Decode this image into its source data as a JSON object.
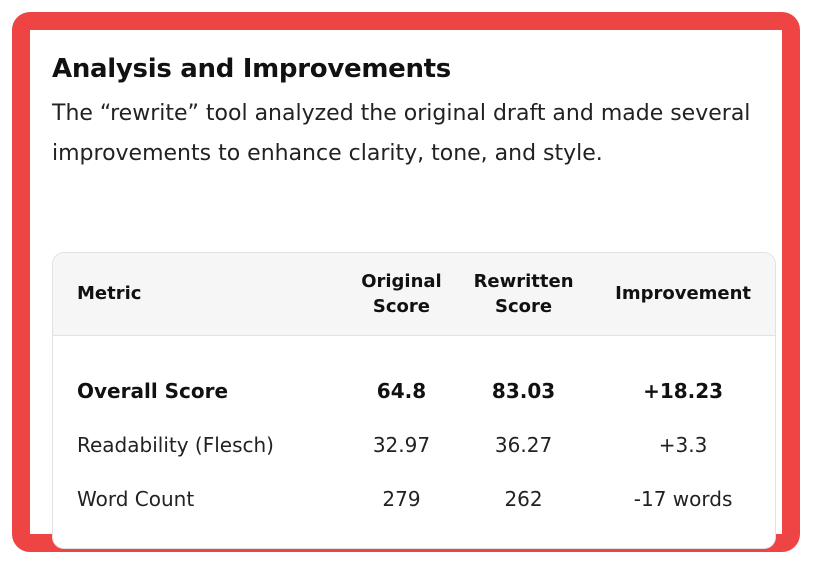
{
  "section": {
    "title": "Analysis and Improvements",
    "description_prefix": "The ",
    "tool_name": "“rewrite”",
    "description_suffix": " tool analyzed the original draft and made several improvements to enhance clarity, tone, and style."
  },
  "table": {
    "headers": {
      "metric": "Metric",
      "original_line1": "Original",
      "original_line2": "Score",
      "rewritten_line1": "Rewritten",
      "rewritten_line2": "Score",
      "improvement": "Improvement"
    },
    "rows": [
      {
        "metric": "Overall Score",
        "original": "64.8",
        "rewritten": "83.03",
        "improvement": "+18.23"
      },
      {
        "metric": "Readability (Flesch)",
        "original": "32.97",
        "rewritten": "36.27",
        "improvement": "+3.3"
      },
      {
        "metric": "Word Count",
        "original": "279",
        "rewritten": "262",
        "improvement": "-17 words"
      }
    ]
  },
  "colors": {
    "frame": "#ee4444",
    "header_bg": "#f6f6f6"
  }
}
